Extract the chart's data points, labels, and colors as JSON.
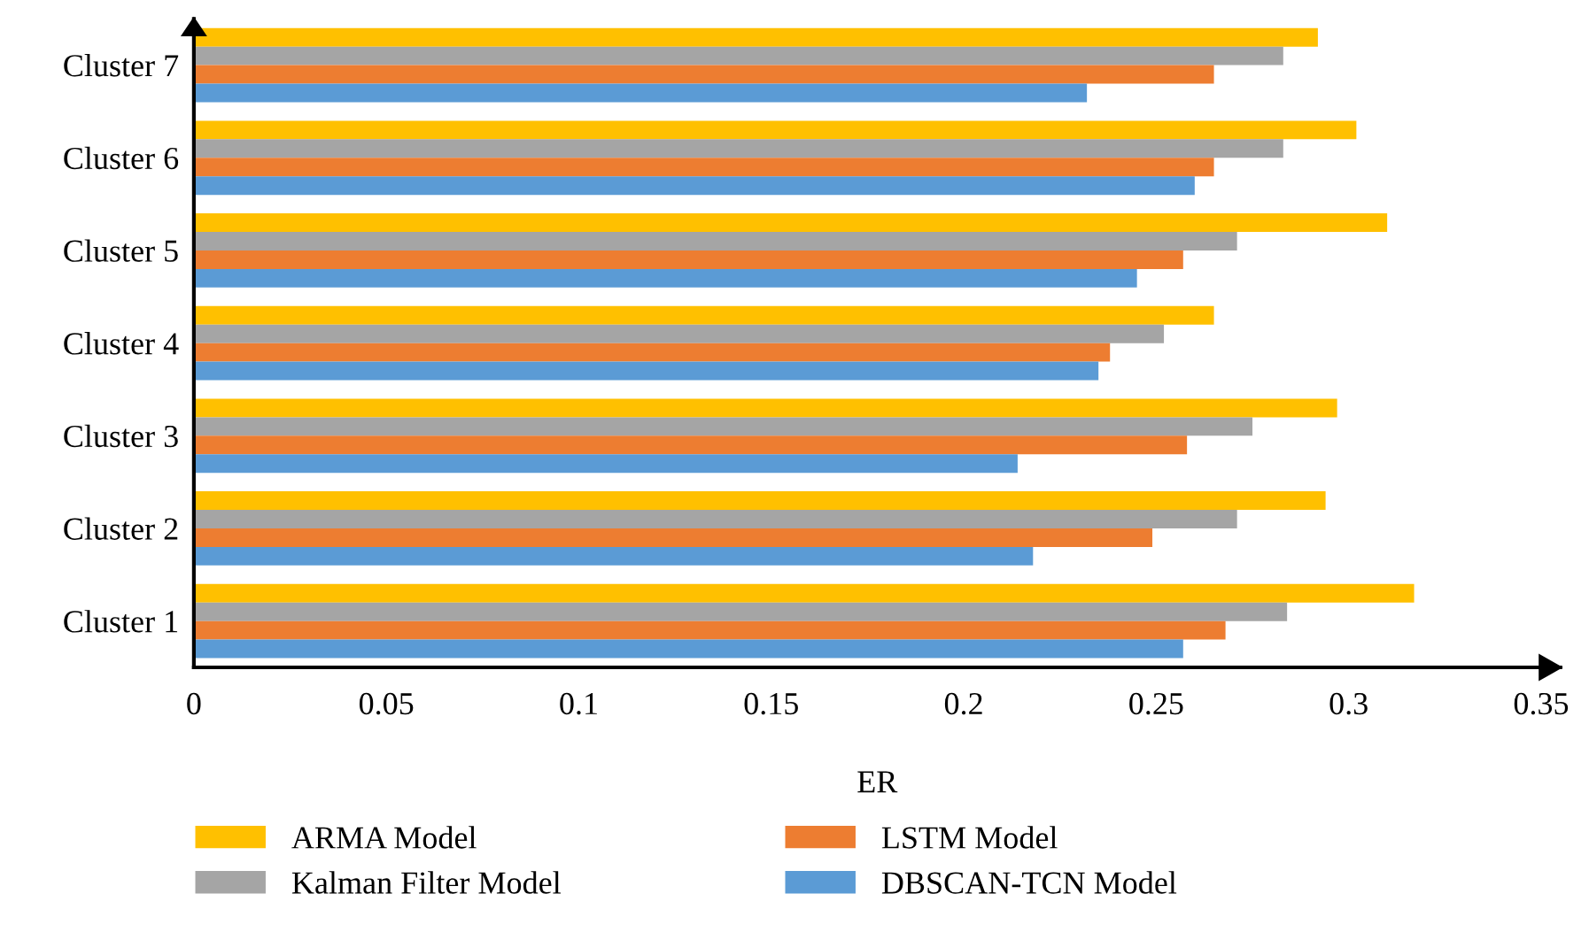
{
  "chart_data": {
    "type": "bar",
    "orientation": "horizontal",
    "xlabel": "ER",
    "categories": [
      "Cluster 7",
      "Cluster 6",
      "Cluster 5",
      "Cluster 4",
      "Cluster 3",
      "Cluster 2",
      "Cluster 1"
    ],
    "series": [
      {
        "name": "ARMA Model",
        "color": "#ffc000",
        "values": [
          0.292,
          0.302,
          0.31,
          0.265,
          0.297,
          0.294,
          0.317
        ]
      },
      {
        "name": "Kalman Filter Model",
        "color": "#a5a5a5",
        "values": [
          0.283,
          0.283,
          0.271,
          0.252,
          0.275,
          0.271,
          0.284
        ]
      },
      {
        "name": "LSTM Model",
        "color": "#ed7d31",
        "values": [
          0.265,
          0.265,
          0.257,
          0.238,
          0.258,
          0.249,
          0.268
        ]
      },
      {
        "name": "DBSCAN-TCN Model",
        "color": "#5b9bd5",
        "values": [
          0.232,
          0.26,
          0.245,
          0.235,
          0.214,
          0.218,
          0.257
        ]
      }
    ],
    "xlim": [
      0,
      0.355
    ],
    "xticks": [
      0,
      0.05,
      0.1,
      0.15,
      0.2,
      0.25,
      0.3,
      0.35
    ],
    "grid": false,
    "legend": "bottom"
  }
}
